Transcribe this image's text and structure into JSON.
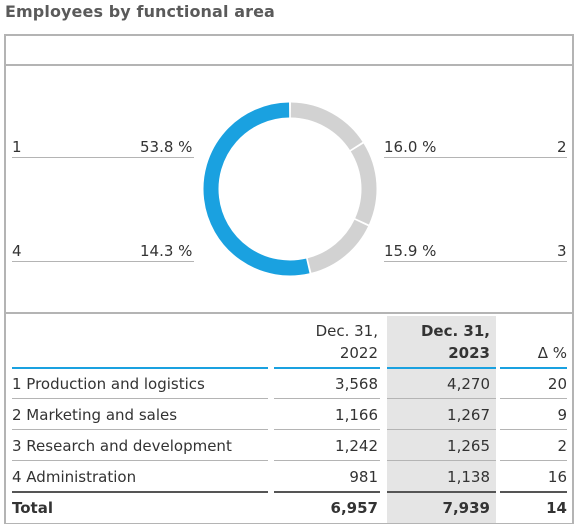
{
  "title": "Employees by functional area",
  "chart_data": {
    "type": "pie",
    "categories": [
      "1",
      "2",
      "3",
      "4"
    ],
    "values": [
      53.8,
      16.0,
      15.9,
      14.3
    ],
    "value_labels": [
      "53.8 %",
      "16.0 %",
      "15.9 %",
      "14.3 %"
    ],
    "colors": [
      "#1aa1e0",
      "#d2d2d2",
      "#d2d2d2",
      "#d2d2d2"
    ],
    "donut": true
  },
  "labels": {
    "seg1": {
      "num": "1",
      "pct": "53.8 %"
    },
    "seg2": {
      "num": "2",
      "pct": "16.0 %"
    },
    "seg3": {
      "num": "3",
      "pct": "15.9 %"
    },
    "seg4": {
      "num": "4",
      "pct": "14.3 %"
    }
  },
  "table": {
    "headers": {
      "col1_line1": "Dec. 31,",
      "col1_line2": "2022",
      "col2_line1": "Dec. 31,",
      "col2_line2": "2023",
      "col3": "Δ %"
    },
    "rows": [
      {
        "label": "1 Production and logistics",
        "v2022": "3,568",
        "v2023": "4,270",
        "delta": "20"
      },
      {
        "label": "2 Marketing and sales",
        "v2022": "1,166",
        "v2023": "1,267",
        "delta": "9"
      },
      {
        "label": "3 Research and development",
        "v2022": "1,242",
        "v2023": "1,265",
        "delta": "2"
      },
      {
        "label": "4 Administration",
        "v2022": "981",
        "v2023": "1,138",
        "delta": "16"
      }
    ],
    "total": {
      "label": "Total",
      "v2022": "6,957",
      "v2023": "7,939",
      "delta": "14"
    }
  },
  "colors": {
    "accent": "#1aa1e0",
    "shade": "#e5e5e5",
    "grey": "#d2d2d2"
  }
}
